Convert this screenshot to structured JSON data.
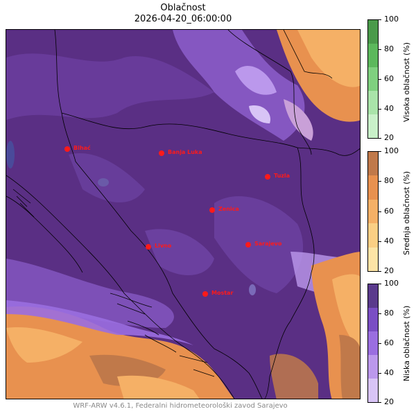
{
  "title": "Oblačnost",
  "subtitle": "2026-04-20_06:00:00",
  "footer": "WRF-ARW v4.6.1, Federalni hidrometeorološki zavod Sarajevo",
  "colorbars": [
    {
      "label": "Visoka oblačnost (%)",
      "ticks": [
        "100",
        "80",
        "60",
        "40",
        "20"
      ],
      "colors": [
        "#4a9a4a",
        "#5cb85c",
        "#7fd07f",
        "#a9e4a9",
        "#c9f1c9"
      ]
    },
    {
      "label": "Srednja oblačnost (%)",
      "ticks": [
        "100",
        "80",
        "60",
        "40",
        "20"
      ],
      "colors": [
        "#c0794a",
        "#e8914f",
        "#f5b066",
        "#fbcf84",
        "#fde4a6"
      ]
    },
    {
      "label": "Niska oblačnost (%)",
      "ticks": [
        "100",
        "80",
        "60",
        "40",
        "20"
      ],
      "colors": [
        "#5a3a8c",
        "#7a4ec4",
        "#9a6ee0",
        "#bb98ec",
        "#d8c4f6"
      ]
    }
  ],
  "cities": [
    {
      "name": "Bihać"
    },
    {
      "name": "Banja Luka"
    },
    {
      "name": "Tuzla"
    },
    {
      "name": "Zenica"
    },
    {
      "name": "Livno"
    },
    {
      "name": "Sarajevo"
    },
    {
      "name": "Mostar"
    }
  ]
}
